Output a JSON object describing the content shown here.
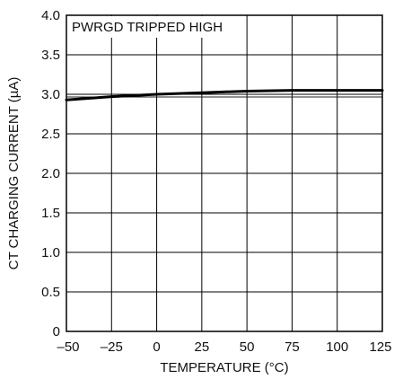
{
  "chart_data": {
    "type": "line",
    "annotation": "PWRGD TRIPPED HIGH",
    "xlabel": "TEMPERATURE (°C)",
    "ylabel": "CT CHARGING CURRENT (µA)",
    "xlim": [
      -50,
      125
    ],
    "ylim": [
      0,
      4.0
    ],
    "xticks": [
      -50,
      -25,
      0,
      25,
      50,
      75,
      100,
      125
    ],
    "xtick_labels": [
      "–50",
      "–25",
      "0",
      "25",
      "50",
      "75",
      "100",
      "125"
    ],
    "yticks": [
      0,
      0.5,
      1.0,
      1.5,
      2.0,
      2.5,
      3.0,
      3.5,
      4.0
    ],
    "ytick_labels": [
      "0",
      "0.5",
      "1.0",
      "1.5",
      "2.0",
      "2.5",
      "3.0",
      "3.5",
      "4.0"
    ],
    "grid": true,
    "reference_line_y": 3.0,
    "series": [
      {
        "x": [
          -50,
          -25,
          0,
          25,
          50,
          75,
          100,
          125
        ],
        "y": [
          2.93,
          2.97,
          3.0,
          3.02,
          3.04,
          3.05,
          3.05,
          3.05
        ]
      }
    ]
  }
}
